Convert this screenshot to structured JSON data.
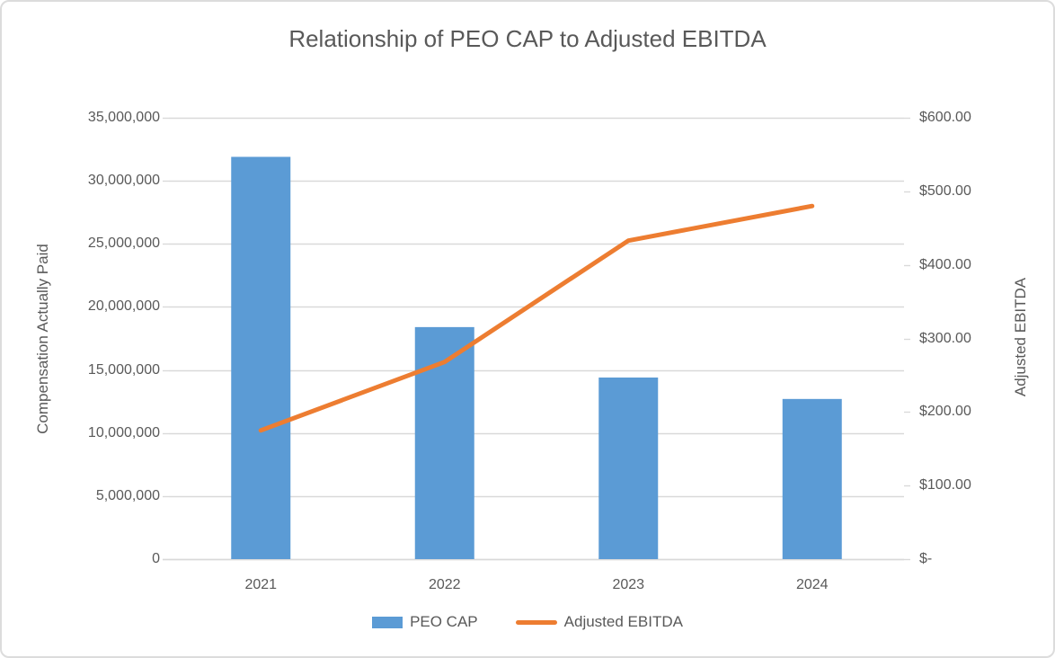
{
  "chart_data": {
    "type": "combo",
    "title": "Relationship of PEO CAP to Adjusted EBITDA",
    "categories": [
      "2021",
      "2022",
      "2023",
      "2024"
    ],
    "series": [
      {
        "name": "PEO CAP",
        "type": "bar",
        "axis": "left",
        "color": "#5B9BD5",
        "values": [
          31900000,
          18400000,
          14400000,
          12700000
        ]
      },
      {
        "name": "Adjusted EBITDA",
        "type": "line",
        "axis": "right",
        "color": "#ED7D31",
        "values": [
          175,
          268,
          433,
          480
        ]
      }
    ],
    "left_axis": {
      "title": "Compensation Actually Paid",
      "min": 0,
      "max": 35000000,
      "ticks": [
        {
          "label": "35,000,000",
          "value": 35000000
        },
        {
          "label": "30,000,000",
          "value": 30000000
        },
        {
          "label": "25,000,000",
          "value": 25000000
        },
        {
          "label": "20,000,000",
          "value": 20000000
        },
        {
          "label": "15,000,000",
          "value": 15000000
        },
        {
          "label": "10,000,000",
          "value": 10000000
        },
        {
          "label": "5,000,000",
          "value": 5000000
        },
        {
          "label": "0",
          "value": 0
        }
      ]
    },
    "right_axis": {
      "title": "Adjusted EBITDA",
      "min": 0,
      "max": 600,
      "ticks": [
        {
          "label": "$600.00",
          "value": 600
        },
        {
          "label": "$500.00",
          "value": 500
        },
        {
          "label": "$400.00",
          "value": 400
        },
        {
          "label": "$300.00",
          "value": 300
        },
        {
          "label": "$200.00",
          "value": 200
        },
        {
          "label": "$100.00",
          "value": 100
        },
        {
          "label": "$-",
          "value": 0
        }
      ]
    },
    "legend_position": "bottom",
    "grid_on": true,
    "colors": {
      "grid": "#D9D9D9",
      "axis_line": "#D9D9D9",
      "text": "#595959",
      "frame_border": "#DCDCDC",
      "background": "#FFFFFF"
    }
  }
}
